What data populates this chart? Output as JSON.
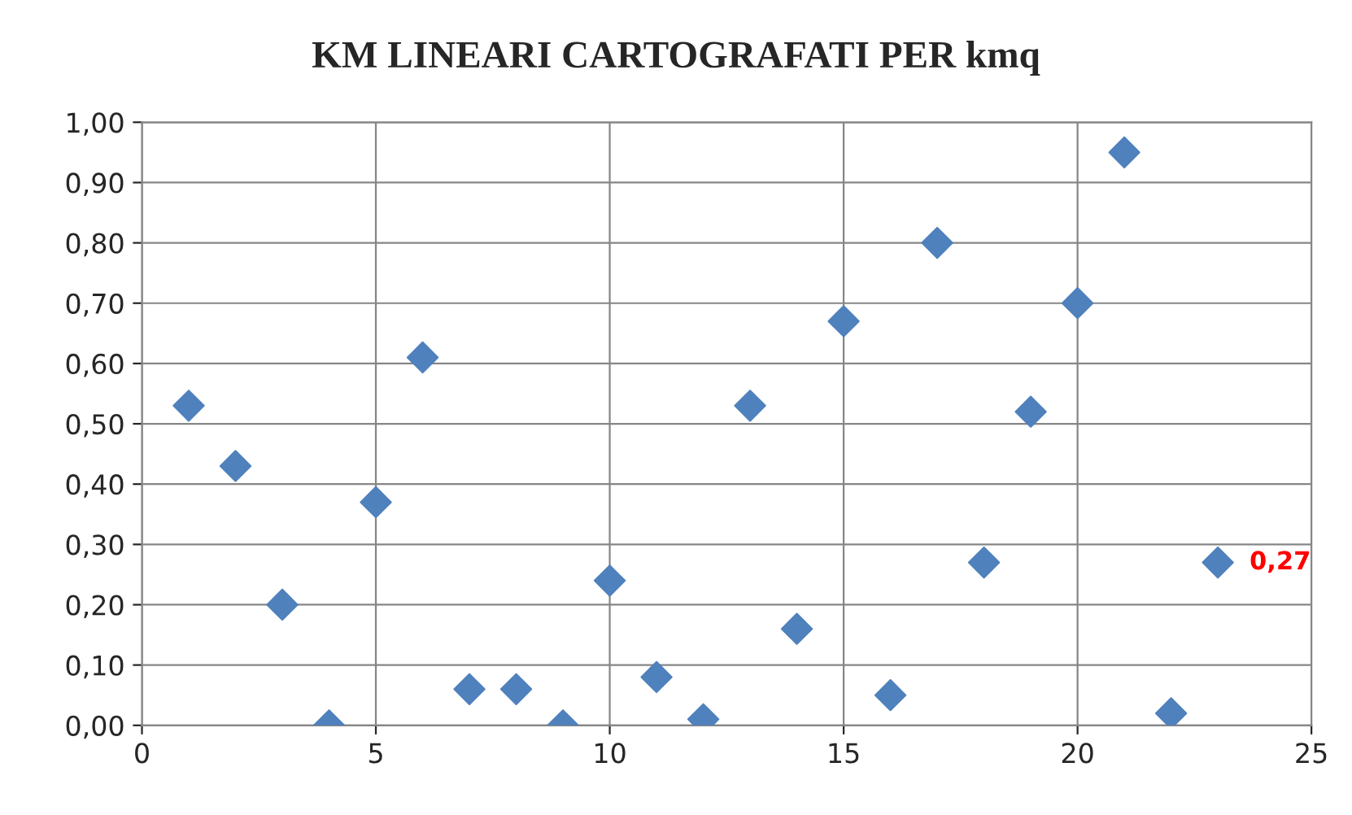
{
  "chart_data": {
    "type": "scatter",
    "title": "KM LINEARI CARTOGRAFATI PER kmq",
    "x": [
      1,
      2,
      3,
      4,
      5,
      6,
      7,
      8,
      9,
      10,
      11,
      12,
      13,
      14,
      15,
      16,
      17,
      18,
      19,
      20,
      21,
      22,
      23
    ],
    "series": [
      {
        "color": "#4f81bd",
        "values": [
          0.53,
          0.43,
          0.2,
          0.0,
          0.37,
          0.61,
          0.06,
          0.06,
          0.0,
          0.24,
          0.08,
          0.01,
          0.53,
          0.16,
          0.67,
          0.05,
          0.8,
          0.27,
          0.52,
          0.7,
          0.95,
          0.02,
          0.27
        ]
      }
    ],
    "xlim": [
      0,
      25
    ],
    "xticks": [
      0,
      5,
      10,
      15,
      20,
      25
    ],
    "ylim": [
      0,
      1
    ],
    "yticks": [
      {
        "value": 0,
        "label": "0,00"
      },
      {
        "value": 0.1,
        "label": "0,10"
      },
      {
        "value": 0.2,
        "label": "0,20"
      },
      {
        "value": 0.3,
        "label": "0,30"
      },
      {
        "value": 0.4,
        "label": "0,40"
      },
      {
        "value": 0.5,
        "label": "0,50"
      },
      {
        "value": 0.6,
        "label": "0,60"
      },
      {
        "value": 0.7,
        "label": "0,70"
      },
      {
        "value": 0.8,
        "label": "0,80"
      },
      {
        "value": 0.9,
        "label": "0,90"
      },
      {
        "value": 1.0,
        "label": "1,00"
      }
    ],
    "annotations": [
      {
        "text": "0,27",
        "x": 23,
        "y": 0.27
      }
    ],
    "grid": true,
    "marker": "diamond",
    "legend": false
  }
}
